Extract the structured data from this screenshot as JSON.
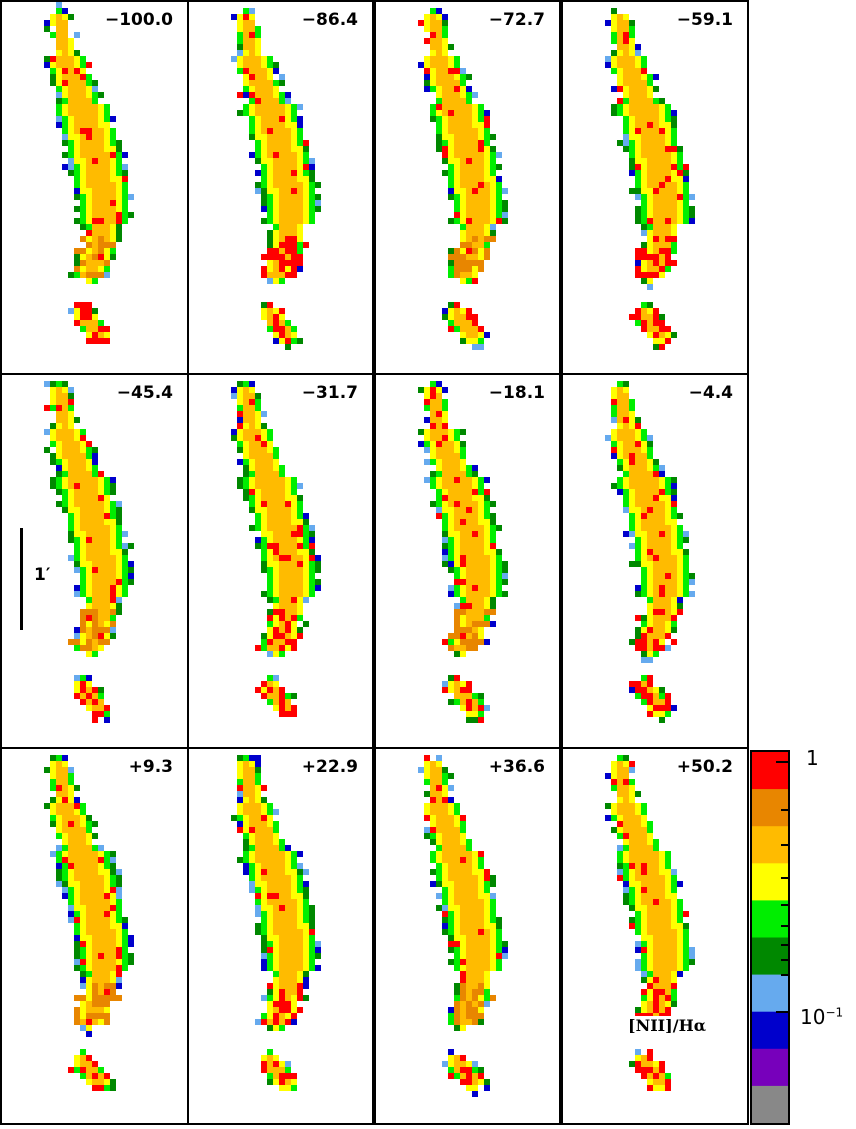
{
  "panels": [
    {
      "label": "−100.0"
    },
    {
      "label": "−86.4"
    },
    {
      "label": "−72.7"
    },
    {
      "label": "−59.1"
    },
    {
      "label": "−45.4"
    },
    {
      "label": "−31.7"
    },
    {
      "label": "−18.1"
    },
    {
      "label": "−4.4"
    },
    {
      "label": "+9.3"
    },
    {
      "label": "+22.9"
    },
    {
      "label": "+36.6"
    },
    {
      "label": "+50.2"
    }
  ],
  "scale_bar": {
    "label": "1′"
  },
  "colorbar": {
    "label": "[NII]/Hα",
    "tick_major_top": "1",
    "tick_minor_label": "10",
    "tick_minor_exp": "−1",
    "colors": [
      "#ff0000",
      "#e88600",
      "#ffbb00",
      "#ffff00",
      "#00ee00",
      "#008800",
      "#66aaee",
      "#0000cc",
      "#7700bb",
      "#888888"
    ]
  }
}
